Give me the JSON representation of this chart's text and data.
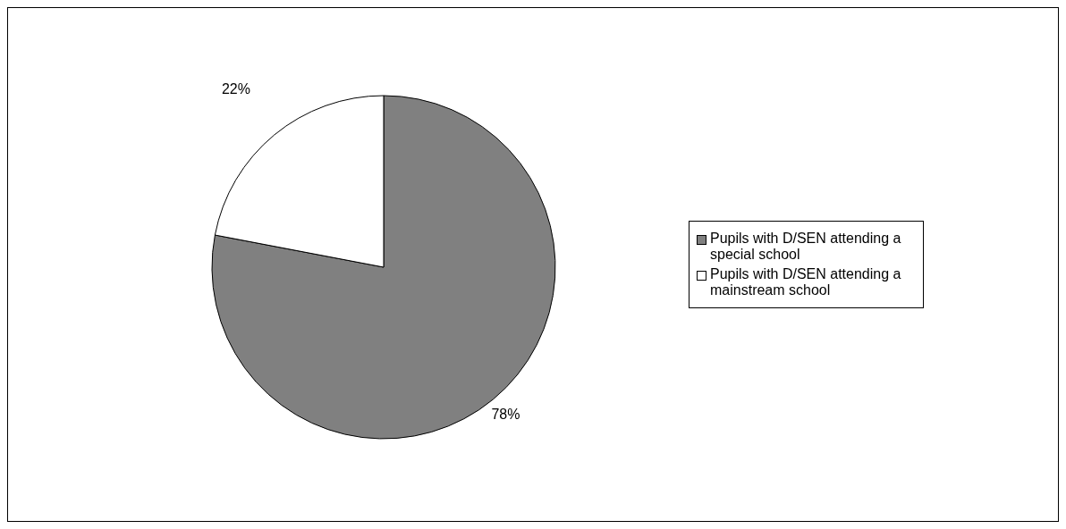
{
  "chart_data": {
    "type": "pie",
    "categories": [
      "Pupils with D/SEN attending a special school",
      "Pupils with D/SEN attending a mainstream school"
    ],
    "values": [
      78,
      22
    ],
    "colors": [
      "#808080",
      "#ffffff"
    ],
    "value_labels": [
      "78%",
      "22%"
    ],
    "legend": "right"
  }
}
